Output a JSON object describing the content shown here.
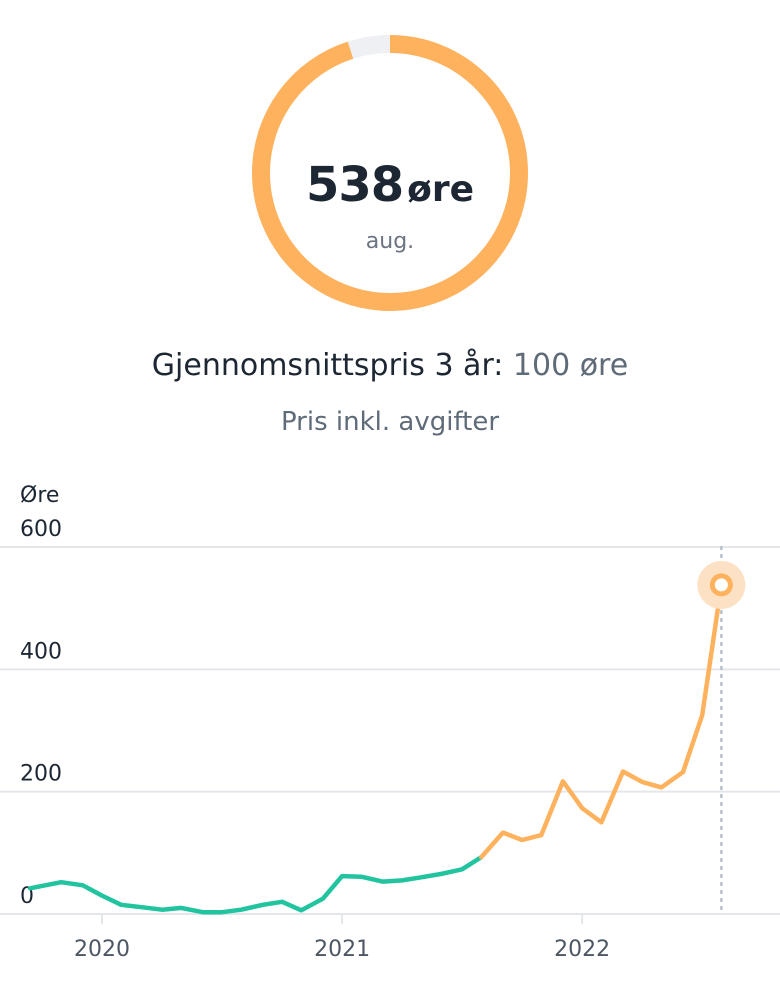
{
  "summary": {
    "value": "538",
    "unit": "øre",
    "period": "aug.",
    "fill_fraction": 0.95,
    "ring_color": "#ffb25e",
    "ring_track_color": "#eef0f3"
  },
  "average": {
    "label": "Gjennomsnittspris 3 år:",
    "value": "100 øre"
  },
  "note": "Pris inkl. avgifter",
  "colors": {
    "past": "#22c4a0",
    "recent": "#ffb25e",
    "grid": "#e3e6ea",
    "highlight_halo": "#fde1c4"
  },
  "chart_data": {
    "type": "line",
    "ylabel": "Øre",
    "ylim": [
      0,
      600
    ],
    "yticks": [
      0,
      200,
      400,
      600
    ],
    "xticks": [
      "2020",
      "2021",
      "2022"
    ],
    "xlim": [
      2019.7,
      2022.72
    ],
    "color_switch_x": 2021.58,
    "series": [
      {
        "x": [
          2019.7,
          2019.75,
          2019.83,
          2019.92,
          2020.0,
          2020.08,
          2020.17,
          2020.25,
          2020.33,
          2020.42,
          2020.5,
          2020.58,
          2020.67,
          2020.75,
          2020.83,
          2020.92,
          2021.0,
          2021.08,
          2021.17,
          2021.25,
          2021.33,
          2021.42,
          2021.5,
          2021.58,
          2021.67,
          2021.75,
          2021.83,
          2021.92,
          2022.0,
          2022.08,
          2022.17,
          2022.25,
          2022.33,
          2022.42,
          2022.5,
          2022.58
        ],
        "y": [
          42,
          46,
          52,
          47,
          30,
          15,
          11,
          7,
          10,
          3,
          3,
          7,
          15,
          20,
          6,
          25,
          62,
          61,
          53,
          55,
          60,
          66,
          73,
          93,
          133,
          121,
          129,
          217,
          173,
          150,
          233,
          216,
          207,
          232,
          325,
          538
        ]
      }
    ],
    "highlight": {
      "x": 2022.58,
      "y": 538
    }
  }
}
